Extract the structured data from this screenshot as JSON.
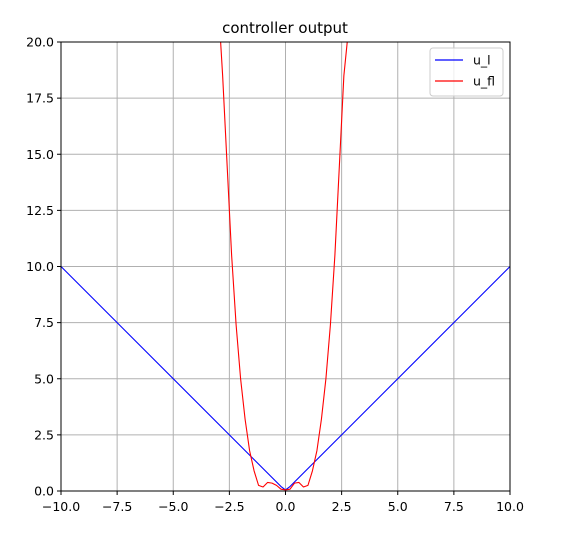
{
  "chart_data": {
    "type": "line",
    "title": "controller output",
    "xlabel": "",
    "ylabel": "",
    "xlim": [
      -10,
      10
    ],
    "ylim": [
      0,
      20
    ],
    "grid": true,
    "legend_position": "top-right",
    "x_ticks": [
      -10,
      -7.5,
      -5,
      -2.5,
      0,
      2.5,
      5,
      7.5,
      10
    ],
    "x_tick_labels": [
      "−10.0",
      "−7.5",
      "−5.0",
      "−2.5",
      "0.0",
      "2.5",
      "5.0",
      "7.5",
      "10.0"
    ],
    "y_ticks": [
      0,
      2.5,
      5,
      7.5,
      10,
      12.5,
      15,
      17.5,
      20
    ],
    "y_tick_labels": [
      "0.0",
      "2.5",
      "5.0",
      "7.5",
      "10.0",
      "12.5",
      "15.0",
      "17.5",
      "20.0"
    ],
    "series": [
      {
        "name": "u_l",
        "color": "#0000ff",
        "x": [
          -10,
          -0.2,
          0,
          0.2,
          10
        ],
        "y": [
          10,
          0.2,
          0.05,
          0.2,
          10
        ]
      },
      {
        "name": "u_fl",
        "color": "#ff0000",
        "x": [
          -2.95,
          -2.8,
          -2.6,
          -2.4,
          -2.2,
          -2.0,
          -1.8,
          -1.6,
          -1.4,
          -1.2,
          -1.0,
          -0.8,
          -0.6,
          -0.4,
          -0.2,
          0,
          0.2,
          0.4,
          0.6,
          0.8,
          1.0,
          1.2,
          1.4,
          1.6,
          1.8,
          2.0,
          2.2,
          2.4,
          2.6,
          2.8,
          2.95
        ],
        "y": [
          21,
          18.5,
          14.5,
          10.5,
          7.4,
          5.0,
          3.2,
          1.8,
          0.9,
          0.25,
          0.18,
          0.38,
          0.35,
          0.25,
          0.08,
          0.05,
          0.08,
          0.35,
          0.38,
          0.18,
          0.25,
          0.9,
          1.8,
          3.2,
          5.0,
          7.4,
          10.5,
          14.5,
          18.5,
          20.5,
          21
        ]
      }
    ]
  }
}
